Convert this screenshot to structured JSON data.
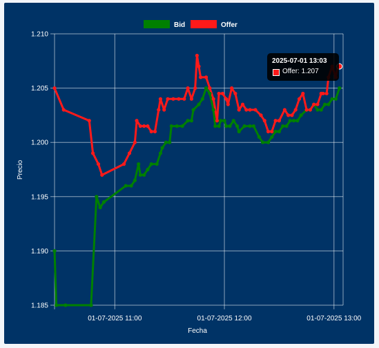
{
  "chart_data": {
    "type": "line",
    "xlabel": "Fecha",
    "ylabel": "Precio",
    "ylim": [
      1.185,
      1.21
    ],
    "y_ticks": [
      "1.185",
      "1.190",
      "1.195",
      "1.200",
      "1.205",
      "1.210"
    ],
    "x_range": [
      "10:27",
      "13:05"
    ],
    "x_ticks": [
      {
        "time": "11:00",
        "label": "01-07-2025 11:00"
      },
      {
        "time": "12:00",
        "label": "01-07-2025 12:00"
      },
      {
        "time": "13:00",
        "label": "01-07-2025 13:00"
      }
    ],
    "grid": true,
    "legend_position": "top",
    "series": [
      {
        "name": "Bid",
        "color": "#008000",
        "points": [
          [
            "10:27",
            1.19
          ],
          [
            "10:28",
            1.185
          ],
          [
            "10:33",
            1.185
          ],
          [
            "10:47",
            1.185
          ],
          [
            "10:50",
            1.195
          ],
          [
            "10:52",
            1.194
          ],
          [
            "10:54",
            1.1945
          ],
          [
            "11:06",
            1.196
          ],
          [
            "11:09",
            1.196
          ],
          [
            "11:11",
            1.1965
          ],
          [
            "11:13",
            1.198
          ],
          [
            "11:14",
            1.197
          ],
          [
            "11:16",
            1.197
          ],
          [
            "11:18",
            1.1975
          ],
          [
            "11:20",
            1.198
          ],
          [
            "11:23",
            1.198
          ],
          [
            "11:25",
            1.199
          ],
          [
            "11:26",
            1.1995
          ],
          [
            "11:28",
            1.2
          ],
          [
            "11:30",
            1.2
          ],
          [
            "11:31",
            1.2015
          ],
          [
            "11:34",
            1.2015
          ],
          [
            "11:37",
            1.2015
          ],
          [
            "11:40",
            1.202
          ],
          [
            "11:42",
            1.202
          ],
          [
            "11:43",
            1.203
          ],
          [
            "11:46",
            1.2035
          ],
          [
            "11:48",
            1.204
          ],
          [
            "11:50",
            1.205
          ],
          [
            "11:52",
            1.2045
          ],
          [
            "11:54",
            1.203
          ],
          [
            "11:55",
            1.2015
          ],
          [
            "11:57",
            1.2015
          ],
          [
            "11:58",
            1.202
          ],
          [
            "12:00",
            1.202
          ],
          [
            "12:01",
            1.2015
          ],
          [
            "12:03",
            1.2015
          ],
          [
            "12:05",
            1.202
          ],
          [
            "12:07",
            1.2015
          ],
          [
            "12:08",
            1.201
          ],
          [
            "12:11",
            1.2015
          ],
          [
            "12:14",
            1.2015
          ],
          [
            "12:16",
            1.2015
          ],
          [
            "12:19",
            1.2005
          ],
          [
            "12:21",
            1.2
          ],
          [
            "12:24",
            1.2
          ],
          [
            "12:26",
            1.2005
          ],
          [
            "12:28",
            1.201
          ],
          [
            "12:30",
            1.201
          ],
          [
            "12:32",
            1.2015
          ],
          [
            "12:34",
            1.2015
          ],
          [
            "12:36",
            1.202
          ],
          [
            "12:38",
            1.202
          ],
          [
            "12:40",
            1.202
          ],
          [
            "12:42",
            1.2025
          ],
          [
            "12:45",
            1.203
          ],
          [
            "12:47",
            1.203
          ],
          [
            "12:49",
            1.2035
          ],
          [
            "12:51",
            1.203
          ],
          [
            "12:53",
            1.203
          ],
          [
            "12:55",
            1.2035
          ],
          [
            "12:57",
            1.2035
          ],
          [
            "12:59",
            1.204
          ],
          [
            "13:01",
            1.204
          ],
          [
            "13:03",
            1.205
          ]
        ]
      },
      {
        "name": "Offer",
        "color": "#ff1a1a",
        "points": [
          [
            "10:27",
            1.205
          ],
          [
            "10:32",
            1.203
          ],
          [
            "10:46",
            1.202
          ],
          [
            "10:48",
            1.199
          ],
          [
            "10:51",
            1.198
          ],
          [
            "10:53",
            1.197
          ],
          [
            "11:05",
            1.198
          ],
          [
            "11:08",
            1.199
          ],
          [
            "11:11",
            1.2
          ],
          [
            "11:12",
            1.202
          ],
          [
            "11:14",
            1.2015
          ],
          [
            "11:16",
            1.2015
          ],
          [
            "11:18",
            1.2015
          ],
          [
            "11:20",
            1.201
          ],
          [
            "11:22",
            1.201
          ],
          [
            "11:24",
            1.203
          ],
          [
            "11:25",
            1.204
          ],
          [
            "11:27",
            1.203
          ],
          [
            "11:29",
            1.204
          ],
          [
            "11:32",
            1.204
          ],
          [
            "11:35",
            1.204
          ],
          [
            "11:38",
            1.204
          ],
          [
            "11:40",
            1.205
          ],
          [
            "11:42",
            1.204
          ],
          [
            "11:44",
            1.205
          ],
          [
            "11:45",
            1.208
          ],
          [
            "11:46",
            1.207
          ],
          [
            "11:47",
            1.206
          ],
          [
            "11:50",
            1.206
          ],
          [
            "11:52",
            1.205
          ],
          [
            "11:54",
            1.204
          ],
          [
            "11:56",
            1.202
          ],
          [
            "11:57",
            1.2045
          ],
          [
            "11:59",
            1.2045
          ],
          [
            "12:01",
            1.204
          ],
          [
            "12:02",
            1.2035
          ],
          [
            "12:04",
            1.205
          ],
          [
            "12:06",
            1.2045
          ],
          [
            "12:08",
            1.203
          ],
          [
            "12:10",
            1.2035
          ],
          [
            "12:12",
            1.203
          ],
          [
            "12:14",
            1.203
          ],
          [
            "12:17",
            1.203
          ],
          [
            "12:20",
            1.2025
          ],
          [
            "12:22",
            1.202
          ],
          [
            "12:24",
            1.201
          ],
          [
            "12:26",
            1.201
          ],
          [
            "12:28",
            1.202
          ],
          [
            "12:30",
            1.202
          ],
          [
            "12:33",
            1.203
          ],
          [
            "12:35",
            1.2025
          ],
          [
            "12:37",
            1.2025
          ],
          [
            "12:39",
            1.203
          ],
          [
            "12:41",
            1.204
          ],
          [
            "12:43",
            1.2045
          ],
          [
            "12:45",
            1.203
          ],
          [
            "12:47",
            1.203
          ],
          [
            "12:49",
            1.2035
          ],
          [
            "12:51",
            1.2035
          ],
          [
            "12:53",
            1.2045
          ],
          [
            "12:54",
            1.2045
          ],
          [
            "12:56",
            1.2045
          ],
          [
            "12:57",
            1.206
          ],
          [
            "12:59",
            1.207
          ],
          [
            "13:01",
            1.206
          ],
          [
            "13:02",
            1.207
          ],
          [
            "13:03",
            1.207
          ]
        ]
      }
    ]
  },
  "tooltip": {
    "title": "2025-07-01 13:03",
    "label": "Offer: 1.207",
    "series": "Offer",
    "time": "13:03"
  }
}
